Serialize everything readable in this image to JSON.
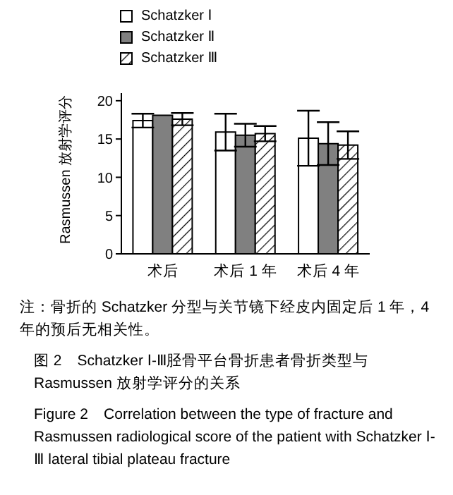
{
  "chart_data": {
    "type": "bar",
    "ylabel": "Rasmussen 放射学评分",
    "categories": [
      "术后",
      "术后 1 年",
      "术后 4 年"
    ],
    "series": [
      {
        "name": "Schatzker Ⅰ",
        "color": "#ffffff",
        "values": [
          17.4,
          15.9,
          15.1
        ],
        "errors": [
          0.9,
          2.4,
          3.6
        ]
      },
      {
        "name": "Schatzker Ⅱ",
        "color": "#808080",
        "values": [
          18.1,
          15.5,
          14.4
        ],
        "errors": [
          null,
          1.5,
          2.8
        ]
      },
      {
        "name": "Schatzker Ⅲ",
        "color": "#000000",
        "values": [
          17.6,
          15.7,
          14.2
        ],
        "errors": [
          0.8,
          1.0,
          1.8
        ]
      }
    ],
    "ylim": [
      0,
      21
    ],
    "yticks": [
      0,
      5,
      10,
      15,
      20
    ],
    "grid": false,
    "legend": "top left",
    "annotations": [
      "注：骨折的 Schatzker 分型与关节镜下经皮内固定后 1 年，4 年的预后无相关性。",
      "图 2　Schatzker Ⅰ-Ⅲ胫骨平台骨折患者骨折类型与 Rasmussen 放射学评分的关系",
      "Figure 2　Correlation between the type of fracture and Rasmussen radiological score of the patient with Schatzker Ⅰ-Ⅲ lateral tibial plateau fracture"
    ]
  }
}
